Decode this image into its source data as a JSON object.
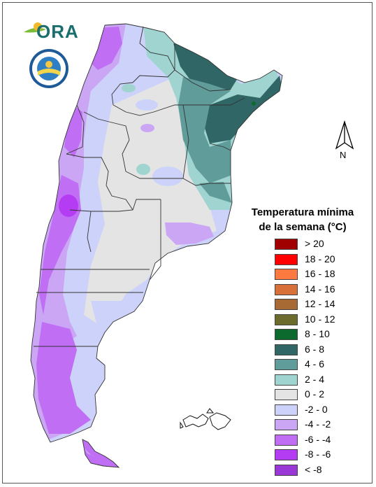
{
  "logo": {
    "name": "ORA",
    "icon": "ora-sun-leaf-icon"
  },
  "seal": {
    "icon": "smn-seal-icon",
    "ring_text": "SERVICIO METEOROLÓGICO NACIONAL",
    "bottom_text": "ARGENTINA"
  },
  "north_arrow": {
    "icon": "north-arrow-icon",
    "label": "N"
  },
  "legend": {
    "title_line1": "Temperatura mínima",
    "title_line2": "de la semana (°C)",
    "items": [
      {
        "label": "> 20",
        "color": "#a00000"
      },
      {
        "label": "18 - 20",
        "color": "#ff0000"
      },
      {
        "label": "16 - 18",
        "color": "#ff7a40"
      },
      {
        "label": "14 - 16",
        "color": "#d8703a"
      },
      {
        "label": "12 - 14",
        "color": "#a86a34"
      },
      {
        "label": "10 - 12",
        "color": "#6b6b2e"
      },
      {
        "label": "8 - 10",
        "color": "#0c6a2e"
      },
      {
        "label": "6 - 8",
        "color": "#316666"
      },
      {
        "label": "4 - 6",
        "color": "#5f9c9a"
      },
      {
        "label": "2 - 4",
        "color": "#9fd4d0"
      },
      {
        "label": "0 - 2",
        "color": "#e4e4e4"
      },
      {
        "label": "-2 - 0",
        "color": "#ccd2fa"
      },
      {
        "label": "-4 - -2",
        "color": "#caa6f5"
      },
      {
        "label": "-6 - -4",
        "color": "#c06ef4"
      },
      {
        "label": "-8 - -6",
        "color": "#b43cf2"
      },
      {
        "label": "< -8",
        "color": "#9938d6"
      }
    ]
  }
}
